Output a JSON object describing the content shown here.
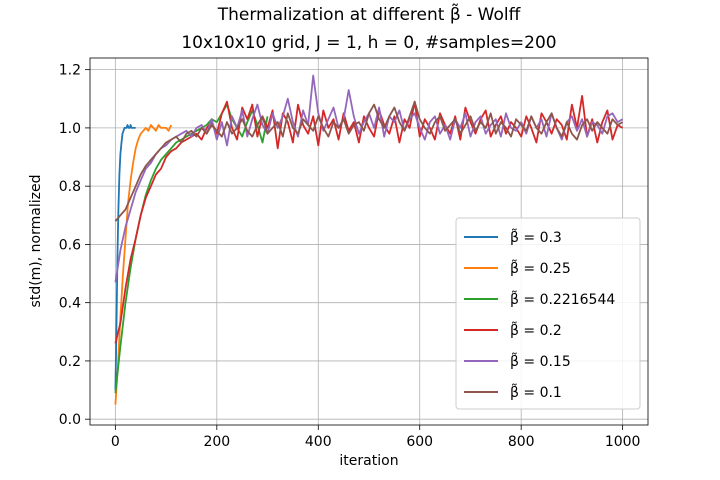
{
  "chart_data": {
    "type": "line",
    "title_line1": "Thermalization at different β̃ - Wolff",
    "title_line2": "10x10x10 grid, J = 1, h = 0, #samples=200",
    "xlabel": "iteration",
    "ylabel": "std(m), normalized",
    "xlim": [
      -50,
      1050
    ],
    "ylim": [
      -0.02,
      1.24
    ],
    "xticks": [
      0,
      200,
      400,
      600,
      800,
      1000
    ],
    "xtick_labels": [
      "0",
      "200",
      "400",
      "600",
      "800",
      "1000"
    ],
    "yticks": [
      0.0,
      0.2,
      0.4,
      0.6,
      0.8,
      1.0,
      1.2
    ],
    "ytick_labels": [
      "0.0",
      "0.2",
      "0.4",
      "0.6",
      "0.8",
      "1.0",
      "1.2"
    ],
    "grid": true,
    "legend_position": "lower-right",
    "series": [
      {
        "name": "β̃ = 0.3",
        "color": "#1f77b4",
        "x_end": 40,
        "values": [
          0.1,
          0.3,
          0.55,
          0.72,
          0.84,
          0.91,
          0.95,
          0.98,
          0.99,
          1.0,
          1.0,
          1.0,
          1.01,
          1.0,
          1.0,
          1.01,
          1.0,
          1.0,
          1.0,
          1.0,
          1.0
        ]
      },
      {
        "name": "β̃ = 0.25",
        "color": "#ff7f0e",
        "x_end": 110,
        "values": [
          0.05,
          0.18,
          0.35,
          0.5,
          0.62,
          0.74,
          0.82,
          0.88,
          0.93,
          0.96,
          0.98,
          0.99,
          1.0,
          0.99,
          1.01,
          1.0,
          0.99,
          1.01,
          1.0,
          1.0,
          1.0,
          0.99,
          1.01
        ]
      },
      {
        "name": "β̃ = 0.2216544",
        "color": "#2ca02c",
        "x_end": 300,
        "values": [
          0.09,
          0.25,
          0.4,
          0.52,
          0.62,
          0.7,
          0.77,
          0.82,
          0.86,
          0.89,
          0.91,
          0.93,
          0.95,
          0.96,
          0.97,
          0.98,
          0.99,
          1.0,
          1.01,
          1.03,
          1.02,
          1.05,
          1.08,
          1.03,
          1.0,
          0.97,
          1.02,
          1.06,
          1.01,
          0.95,
          1.04
        ]
      },
      {
        "name": "β̃ = 0.2",
        "color": "#d62728",
        "x_end": 1000,
        "values": [
          0.26,
          0.33,
          0.45,
          0.55,
          0.62,
          0.7,
          0.76,
          0.8,
          0.84,
          0.86,
          0.9,
          0.92,
          0.93,
          0.95,
          0.96,
          0.97,
          0.98,
          0.96,
          1.0,
          1.02,
          0.98,
          1.05,
          1.09,
          1.0,
          0.96,
          1.07,
          1.03,
          1.08,
          0.97,
          1.04,
          1.0,
          1.06,
          0.93,
          1.05,
          1.02,
          0.95,
          1.08,
          1.01,
          0.98,
          1.04,
          0.94,
          1.06,
          1.0,
          1.03,
          0.96,
          1.05,
          0.99,
          1.02,
          0.95,
          1.04,
          1.0,
          0.97,
          1.06,
          1.01,
          0.98,
          1.04,
          0.95,
          1.03,
          1.0,
          1.09,
          0.97,
          1.03,
          1.0,
          0.96,
          1.05,
          1.01,
          0.98,
          1.04,
          0.96,
          1.07,
          1.02,
          0.98,
          1.03,
          1.06,
          0.97,
          1.01,
          1.04,
          0.98,
          1.02,
          1.0,
          0.97,
          1.04,
          1.0,
          0.95,
          1.05,
          1.02,
          0.98,
          1.03,
          1.01,
          0.96,
          1.08,
          1.0,
          1.11,
          0.97,
          1.03,
          0.95,
          1.02,
          1.06,
          0.96,
          1.01,
          1.0
        ]
      },
      {
        "name": "β̃ = 0.15",
        "color": "#9467bd",
        "x_end": 1000,
        "values": [
          0.47,
          0.58,
          0.66,
          0.72,
          0.78,
          0.82,
          0.86,
          0.88,
          0.91,
          0.93,
          0.94,
          0.96,
          0.97,
          0.98,
          0.99,
          0.97,
          1.0,
          1.01,
          0.98,
          1.03,
          0.96,
          1.02,
          0.94,
          1.04,
          1.0,
          1.06,
          0.97,
          1.03,
          1.08,
          1.01,
          0.98,
          1.05,
          1.0,
          1.04,
          1.1,
          1.02,
          0.97,
          1.06,
          1.01,
          1.18,
          1.05,
          0.99,
          1.03,
          1.07,
          1.0,
          1.03,
          1.13,
          1.04,
          0.98,
          1.02,
          1.05,
          1.0,
          1.07,
          0.97,
          1.04,
          1.02,
          1.06,
          0.99,
          1.03,
          1.05,
          1.0,
          0.96,
          1.02,
          1.04,
          0.98,
          1.01,
          0.96,
          1.03,
          1.0,
          1.05,
          0.97,
          1.02,
          1.04,
          0.98,
          1.01,
          1.03,
          0.97,
          1.05,
          1.0,
          0.99,
          1.02,
          0.98,
          1.04,
          1.0,
          1.03,
          0.97,
          1.05,
          1.0,
          0.96,
          1.02,
          1.04,
          0.99,
          1.03,
          0.97,
          1.02,
          1.01,
          0.98,
          1.04,
          1.05,
          1.02,
          1.03
        ]
      },
      {
        "name": "β̃ = 0.1",
        "color": "#8c564b",
        "x_end": 1000,
        "values": [
          0.68,
          0.7,
          0.72,
          0.76,
          0.8,
          0.84,
          0.87,
          0.89,
          0.91,
          0.93,
          0.95,
          0.96,
          0.97,
          0.95,
          0.98,
          0.99,
          0.97,
          1.0,
          0.98,
          1.01,
          0.99,
          0.97,
          1.02,
          0.98,
          1.0,
          1.03,
          0.99,
          0.97,
          1.01,
          1.04,
          0.98,
          1.0,
          1.02,
          0.97,
          1.05,
          1.0,
          0.98,
          1.03,
          1.01,
          0.99,
          1.04,
          1.0,
          0.97,
          1.02,
          1.0,
          1.03,
          0.98,
          1.01,
          1.02,
          0.99,
          1.05,
          1.08,
          1.03,
          1.0,
          1.04,
          1.07,
          1.02,
          0.99,
          1.04,
          1.09,
          1.03,
          1.0,
          0.98,
          1.02,
          1.04,
          0.99,
          1.01,
          1.03,
          0.98,
          1.01,
          1.04,
          0.99,
          1.02,
          1.0,
          1.05,
          0.98,
          1.02,
          1.0,
          0.97,
          1.03,
          1.01,
          0.99,
          1.04,
          1.0,
          0.98,
          1.02,
          1.05,
          1.0,
          0.97,
          1.02,
          0.98,
          0.96,
          1.01,
          1.03,
          0.99,
          1.02,
          1.0,
          0.98,
          1.03,
          1.01,
          1.02
        ]
      }
    ]
  }
}
